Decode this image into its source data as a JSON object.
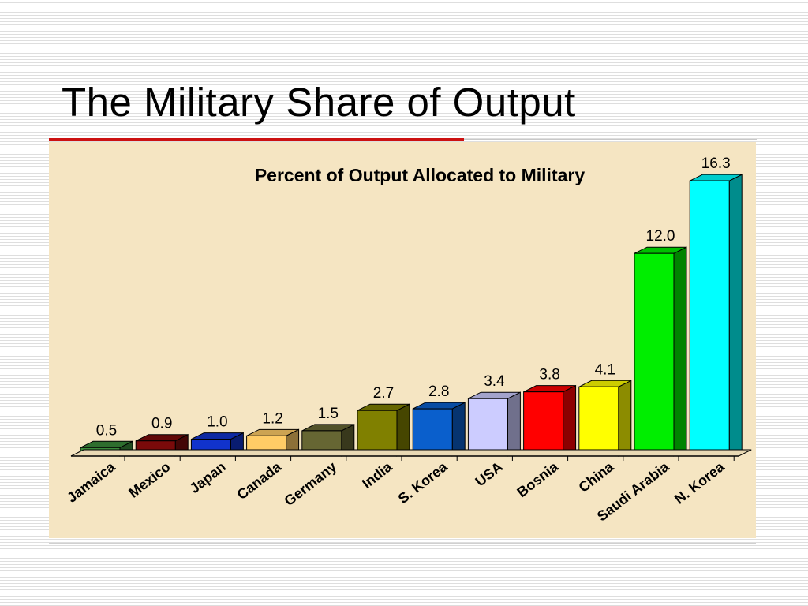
{
  "slide": {
    "title": "The Military Share of Output"
  },
  "colors": {
    "title_rule": "#cc1111",
    "panel_background": "#f5e5c2"
  },
  "chart_data": {
    "type": "bar",
    "title": "Percent of Output Allocated to Military",
    "xlabel": "",
    "ylabel": "",
    "ylim": [
      0,
      17
    ],
    "grid": false,
    "legend": "none",
    "style": "3d",
    "categories": [
      "Jamaica",
      "Mexico",
      "Japan",
      "Canada",
      "Germany",
      "India",
      "S. Korea",
      "USA",
      "Bosnia",
      "China",
      "Saudi Arabia",
      "N. Korea"
    ],
    "values": [
      0.5,
      0.9,
      1.0,
      1.2,
      1.5,
      2.7,
      2.8,
      3.4,
      3.8,
      4.1,
      12.0,
      16.3
    ],
    "value_labels": [
      "0.5",
      "0.9",
      "1.0",
      "1.2",
      "1.5",
      "2.7",
      "2.8",
      "3.4",
      "3.8",
      "4.1",
      "12.0",
      "16.3"
    ],
    "bar_colors": [
      "#3a8a3a",
      "#7a0a0a",
      "#1133cc",
      "#ffcc66",
      "#666633",
      "#808000",
      "#0a5fcc",
      "#ccccff",
      "#ff0000",
      "#ffff00",
      "#00ee00",
      "#00ffff"
    ]
  }
}
